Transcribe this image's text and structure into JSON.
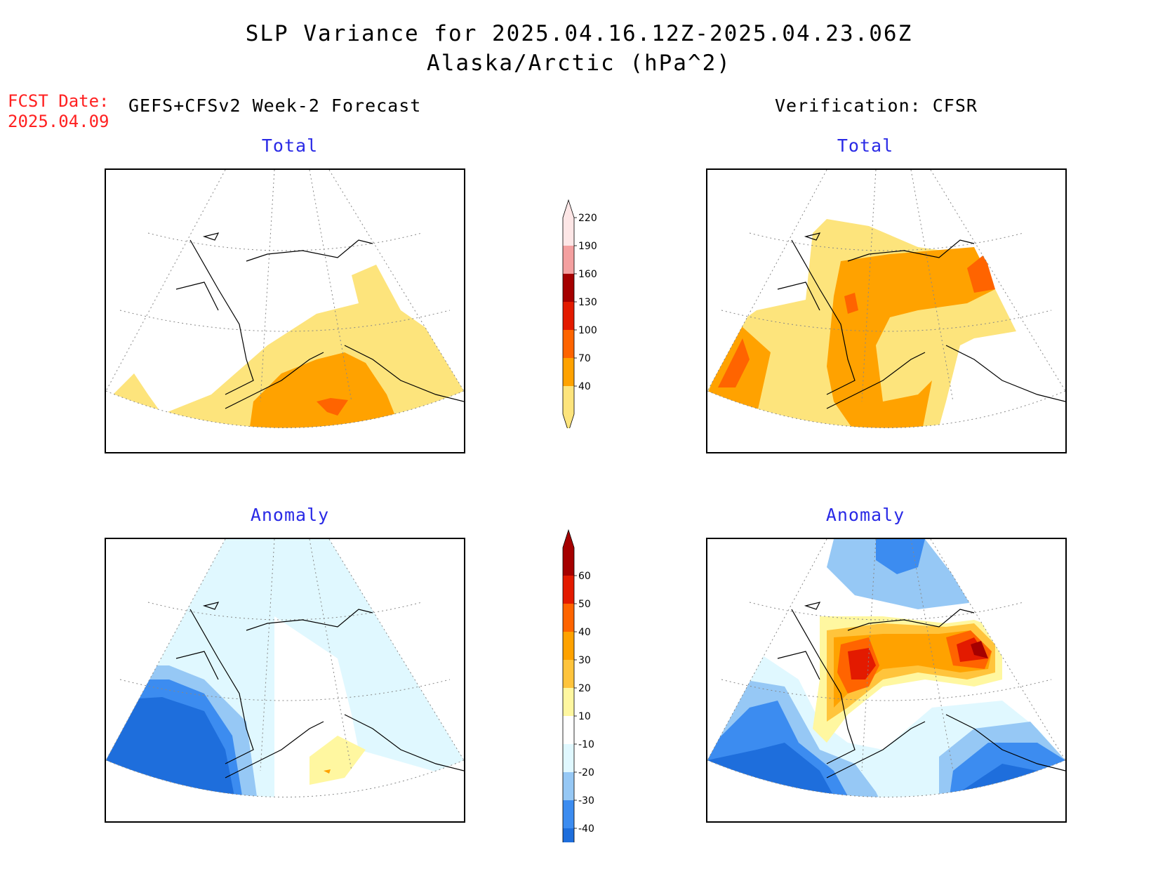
{
  "header": {
    "title_line1": "SLP Variance for 2025.04.16.12Z-2025.04.23.06Z",
    "title_line2": "Alaska/Arctic (hPa^2)",
    "fcst_date_label": "FCST Date:",
    "fcst_date_value": "2025.04.09",
    "left_column_label": "GEFS+CFSv2 Week-2 Forecast",
    "right_column_label": "Verification: CFSR"
  },
  "panels": {
    "forecast_total": {
      "title": "Total"
    },
    "verification_total": {
      "title": "Total"
    },
    "forecast_anomaly": {
      "title": "Anomaly"
    },
    "verification_anomaly": {
      "title": "Anomaly"
    }
  },
  "colorbar_total": {
    "labels": [
      "40",
      "70",
      "100",
      "130",
      "160",
      "190",
      "220"
    ],
    "colors": [
      "#fde47c",
      "#ffa200",
      "#ff6400",
      "#e31a00",
      "#a50000",
      "#f4a0a0",
      "#fde6e6"
    ]
  },
  "colorbar_anomaly": {
    "labels": [
      "-40",
      "-30",
      "-20",
      "-10",
      "10",
      "20",
      "30",
      "40",
      "50",
      "60"
    ],
    "colors": [
      "#1e6edc",
      "#3c8cf0",
      "#96c8f5",
      "#e0f8ff",
      "#ffffff",
      "#fff7a0",
      "#ffc43c",
      "#ffa200",
      "#ff6400",
      "#e31a00",
      "#a50000"
    ]
  },
  "legend_colors": {
    "title_blue": "#2a2ae6",
    "fcst_red": "#ff2020"
  }
}
